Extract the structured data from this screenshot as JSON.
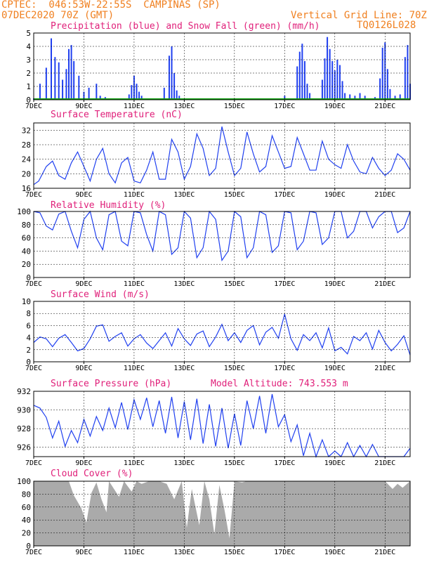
{
  "header": {
    "line1": "CPTEC:  046:53W-22:55S  CAMPINAS (SP)",
    "line2": "07DEC2020 70Z (GMT)",
    "grid_note": "Vertical Grid Line: 70Z",
    "run_id": "TQ0126L028"
  },
  "colors": {
    "header": "#f08020",
    "title": "#e0207a",
    "line": "#2040f0",
    "snow": "#10a010",
    "cloud": "#aaaaaa"
  },
  "x_tick_labels": [
    "7DEC",
    "9DEC",
    "11DEC",
    "13DEC",
    "15DEC",
    "17DEC",
    "19DEC",
    "21DEC"
  ],
  "chart_data": [
    {
      "id": "precip",
      "type": "bar",
      "title": "Precipitation (blue) and Snow Fall (green) (mm/h)",
      "ylim": [
        0,
        5
      ],
      "yticks": [
        0,
        1,
        2,
        3,
        4,
        5
      ],
      "x": [
        7.0,
        7.25,
        7.5,
        7.7,
        7.85,
        8.0,
        8.15,
        8.3,
        8.4,
        8.5,
        8.6,
        8.8,
        9.0,
        9.2,
        9.5,
        9.65,
        9.85,
        10.2,
        10.5,
        10.8,
        10.9,
        11.0,
        11.1,
        11.2,
        11.3,
        11.7,
        12.0,
        12.2,
        12.4,
        12.5,
        12.6,
        12.7,
        12.8,
        13.2,
        13.6,
        14.2,
        14.8,
        15.2,
        15.7,
        16.2,
        16.6,
        17.0,
        17.5,
        17.6,
        17.7,
        17.8,
        17.9,
        18.0,
        18.2,
        18.5,
        18.6,
        18.7,
        18.8,
        18.9,
        19.0,
        19.1,
        19.2,
        19.3,
        19.4,
        19.6,
        19.8,
        20.0,
        20.2,
        20.4,
        20.6,
        20.8,
        20.9,
        21.0,
        21.1,
        21.2,
        21.4,
        21.6,
        21.8,
        21.9,
        22.0
      ],
      "values": [
        0.1,
        1.2,
        2.4,
        4.6,
        3.2,
        2.8,
        1.5,
        2.3,
        3.8,
        4.1,
        2.9,
        1.8,
        0.6,
        0.9,
        1.2,
        0.3,
        0.2,
        0.05,
        0.05,
        0.4,
        1.1,
        1.8,
        1.2,
        0.6,
        0.3,
        0.1,
        0.1,
        0.9,
        3.3,
        4.0,
        2.0,
        0.7,
        0.3,
        0.1,
        0.1,
        0.05,
        0.05,
        0.05,
        0.1,
        0.05,
        0.05,
        0.3,
        2.5,
        3.6,
        4.2,
        2.9,
        1.2,
        0.5,
        0.1,
        1.5,
        3.1,
        4.7,
        3.8,
        2.9,
        2.2,
        3.0,
        2.6,
        1.4,
        0.5,
        0.4,
        0.3,
        0.5,
        0.3,
        0.1,
        0.2,
        1.6,
        3.9,
        4.3,
        2.3,
        0.8,
        0.3,
        0.4,
        3.2,
        4.1,
        1.2
      ],
      "snow": 0
    },
    {
      "id": "temp",
      "type": "line",
      "title": "Surface Temperature (nC)",
      "ylim": [
        16,
        34
      ],
      "yticks": [
        16,
        20,
        24,
        28,
        32
      ],
      "x": [
        7.0,
        7.2,
        7.5,
        7.75,
        8.0,
        8.25,
        8.5,
        8.75,
        9.0,
        9.25,
        9.5,
        9.75,
        10.0,
        10.25,
        10.5,
        10.75,
        11.0,
        11.25,
        11.5,
        11.75,
        12.0,
        12.25,
        12.5,
        12.75,
        13.0,
        13.25,
        13.5,
        13.75,
        14.0,
        14.25,
        14.5,
        14.75,
        15.0,
        15.25,
        15.5,
        15.75,
        16.0,
        16.25,
        16.5,
        16.75,
        17.0,
        17.25,
        17.5,
        17.75,
        18.0,
        18.25,
        18.5,
        18.75,
        19.0,
        19.25,
        19.5,
        19.75,
        20.0,
        20.25,
        20.5,
        20.75,
        21.0,
        21.25,
        21.5,
        21.75,
        22.0
      ],
      "values": [
        17,
        18,
        22,
        23.5,
        19.5,
        18.5,
        23,
        26,
        22,
        18,
        24,
        27,
        20,
        17.5,
        23,
        24.5,
        18,
        17.5,
        21,
        26,
        18.5,
        18.5,
        29.5,
        26,
        18.5,
        22,
        31,
        27,
        19.5,
        21.5,
        33,
        26,
        19.5,
        21.5,
        31.5,
        25.5,
        20.5,
        22,
        30.5,
        26,
        21.5,
        22,
        30,
        25.5,
        21,
        21,
        29,
        24,
        22.5,
        21.5,
        28,
        23.5,
        20.5,
        20,
        24.5,
        21.5,
        19.5,
        21,
        25.5,
        24,
        21
      ]
    },
    {
      "id": "rh",
      "type": "line",
      "title": "Relative Humidity (%)",
      "ylim": [
        0,
        100
      ],
      "yticks": [
        0,
        20,
        40,
        60,
        80,
        100
      ],
      "x": [
        7.0,
        7.25,
        7.5,
        7.75,
        8.0,
        8.25,
        8.5,
        8.75,
        9.0,
        9.25,
        9.5,
        9.75,
        10.0,
        10.25,
        10.5,
        10.75,
        11.0,
        11.25,
        11.5,
        11.75,
        12.0,
        12.25,
        12.5,
        12.75,
        13.0,
        13.25,
        13.5,
        13.75,
        14.0,
        14.25,
        14.5,
        14.75,
        15.0,
        15.25,
        15.5,
        15.75,
        16.0,
        16.25,
        16.5,
        16.75,
        17.0,
        17.25,
        17.5,
        17.75,
        18.0,
        18.25,
        18.5,
        18.75,
        19.0,
        19.25,
        19.5,
        19.75,
        20.0,
        20.25,
        20.5,
        20.75,
        21.0,
        21.25,
        21.5,
        21.75,
        22.0
      ],
      "values": [
        100,
        98,
        78,
        72,
        96,
        100,
        70,
        45,
        88,
        100,
        60,
        42,
        95,
        100,
        55,
        48,
        100,
        98,
        65,
        40,
        100,
        95,
        35,
        45,
        100,
        90,
        30,
        45,
        100,
        88,
        26,
        40,
        100,
        92,
        30,
        45,
        100,
        95,
        38,
        48,
        100,
        98,
        42,
        55,
        100,
        98,
        50,
        60,
        100,
        100,
        60,
        70,
        100,
        100,
        75,
        92,
        100,
        100,
        68,
        75,
        100
      ]
    },
    {
      "id": "wind",
      "type": "line",
      "title": "Surface Wind (m/s)",
      "ylim": [
        0,
        10
      ],
      "yticks": [
        0,
        2,
        4,
        6,
        8,
        10
      ],
      "x": [
        7.0,
        7.25,
        7.5,
        7.75,
        8.0,
        8.25,
        8.5,
        8.75,
        9.0,
        9.25,
        9.5,
        9.75,
        10.0,
        10.25,
        10.5,
        10.75,
        11.0,
        11.25,
        11.5,
        11.75,
        12.0,
        12.25,
        12.5,
        12.75,
        13.0,
        13.25,
        13.5,
        13.75,
        14.0,
        14.25,
        14.5,
        14.75,
        15.0,
        15.25,
        15.5,
        15.75,
        16.0,
        16.25,
        16.5,
        16.75,
        17.0,
        17.25,
        17.5,
        17.75,
        18.0,
        18.25,
        18.5,
        18.75,
        19.0,
        19.25,
        19.5,
        19.75,
        20.0,
        20.25,
        20.5,
        20.75,
        21.0,
        21.25,
        21.5,
        21.75,
        22.0
      ],
      "values": [
        3.2,
        4.1,
        3.8,
        2.5,
        3.9,
        4.5,
        3.2,
        1.8,
        2.2,
        3.8,
        5.9,
        6.1,
        3.4,
        4.2,
        4.8,
        2.6,
        3.8,
        4.5,
        3.1,
        2.2,
        3.5,
        4.8,
        2.6,
        5.5,
        3.8,
        2.7,
        4.6,
        5.1,
        2.5,
        4.1,
        6.2,
        3.5,
        4.8,
        3.2,
        5.2,
        6.0,
        2.8,
        4.9,
        5.7,
        3.9,
        7.9,
        3.8,
        1.9,
        4.5,
        3.5,
        4.8,
        2.3,
        5.6,
        1.8,
        2.4,
        1.3,
        4.2,
        3.5,
        4.8,
        2.1,
        5.2,
        3.2,
        1.8,
        2.9,
        4.3,
        1.1
      ]
    },
    {
      "id": "pres",
      "type": "line",
      "title": "Surface Pressure (hPa)",
      "annotation": "Model Altitude: 743.553 m",
      "ylim": [
        925,
        932
      ],
      "yticks": [
        926,
        928,
        930,
        932
      ],
      "x": [
        7.0,
        7.25,
        7.5,
        7.75,
        8.0,
        8.25,
        8.5,
        8.75,
        9.0,
        9.25,
        9.5,
        9.75,
        10.0,
        10.25,
        10.5,
        10.75,
        11.0,
        11.25,
        11.5,
        11.75,
        12.0,
        12.25,
        12.5,
        12.75,
        13.0,
        13.25,
        13.5,
        13.75,
        14.0,
        14.25,
        14.5,
        14.75,
        15.0,
        15.25,
        15.5,
        15.75,
        16.0,
        16.25,
        16.5,
        16.75,
        17.0,
        17.25,
        17.5,
        17.75,
        18.0,
        18.25,
        18.5,
        18.75,
        19.0,
        19.25,
        19.5,
        19.75,
        20.0,
        20.25,
        20.5,
        20.75,
        21.0,
        21.25,
        21.5,
        21.75,
        22.0
      ],
      "values": [
        930.5,
        930.2,
        929.2,
        927.0,
        928.8,
        926.1,
        927.8,
        926.5,
        929.0,
        927.2,
        929.3,
        927.8,
        930.2,
        928.1,
        930.8,
        927.9,
        931.1,
        929.0,
        931.3,
        928.2,
        931.0,
        927.5,
        931.4,
        927.0,
        930.9,
        926.8,
        931.2,
        926.4,
        930.6,
        926.1,
        930.2,
        925.9,
        929.6,
        926.2,
        931.0,
        928.0,
        931.5,
        927.5,
        931.7,
        928.2,
        929.5,
        926.6,
        928.4,
        925.1,
        927.5,
        925.0,
        926.8,
        925.0,
        925.6,
        925.0,
        926.5,
        925.0,
        926.2,
        925.0,
        926.3,
        925.0,
        925.0,
        925.0,
        925.0,
        925.0,
        925.9
      ]
    },
    {
      "id": "cloud",
      "type": "area",
      "title": "Cloud Cover (%)",
      "ylim": [
        0,
        100
      ],
      "yticks": [
        0,
        20,
        40,
        60,
        80,
        100
      ],
      "x": [
        7.0,
        7.5,
        8.0,
        8.4,
        8.6,
        8.9,
        9.1,
        9.3,
        9.5,
        9.7,
        9.9,
        10.0,
        10.2,
        10.4,
        10.6,
        10.9,
        11.1,
        11.3,
        11.6,
        12.0,
        12.3,
        12.6,
        12.9,
        13.1,
        13.3,
        13.6,
        13.8,
        14.0,
        14.2,
        14.4,
        14.6,
        14.8,
        15.0,
        15.3,
        15.5,
        15.7,
        16.0,
        16.4,
        16.8,
        17.2,
        17.6,
        18.0,
        18.5,
        19.0,
        19.5,
        20.0,
        20.5,
        21.0,
        21.3,
        21.5,
        21.7,
        22.0
      ],
      "values": [
        100,
        100,
        100,
        100,
        78,
        58,
        36,
        82,
        98,
        72,
        52,
        100,
        88,
        76,
        100,
        84,
        100,
        96,
        100,
        100,
        96,
        72,
        100,
        28,
        88,
        32,
        100,
        72,
        18,
        94,
        56,
        12,
        100,
        98,
        100,
        100,
        100,
        100,
        100,
        100,
        100,
        100,
        100,
        100,
        100,
        100,
        100,
        100,
        88,
        96,
        90,
        100
      ]
    }
  ]
}
